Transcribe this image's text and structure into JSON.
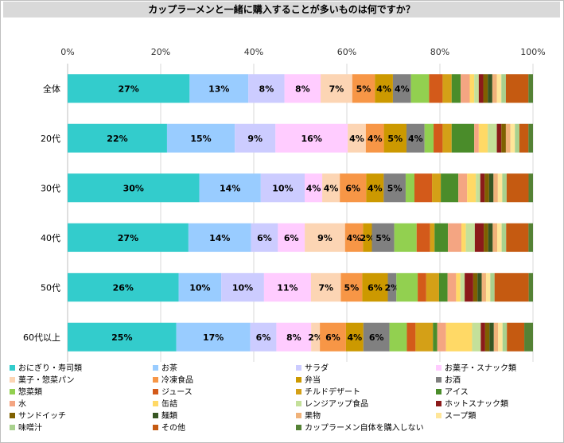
{
  "chart_data": {
    "type": "bar",
    "orientation": "horizontal",
    "stacked": "percent",
    "title": "カップラーメンと一緒に購入することが多いものは何ですか？",
    "categories": [
      "全体",
      "20代",
      "30代",
      "40代",
      "50代",
      "60代以上"
    ],
    "x_ticks": [
      "0%",
      "20%",
      "40%",
      "60%",
      "80%",
      "100%"
    ],
    "xlim": [
      0,
      100
    ],
    "grid": true,
    "legend_position": "bottom",
    "series": [
      {
        "name": "おにぎり・寿司類",
        "color": "#33cccc",
        "values": [
          27,
          22,
          30,
          27,
          26,
          25
        ],
        "labels": [
          "27%",
          "22%",
          "30%",
          "27%",
          "26%",
          "25%"
        ]
      },
      {
        "name": "お茶",
        "color": "#99ccff",
        "values": [
          13,
          15,
          14,
          14,
          10,
          17
        ],
        "labels": [
          "13%",
          "15%",
          "14%",
          "14%",
          "10%",
          "17%"
        ]
      },
      {
        "name": "サラダ",
        "color": "#ccccff",
        "values": [
          8,
          9,
          10,
          6,
          10,
          6
        ],
        "labels": [
          "8%",
          "9%",
          "10%",
          "6%",
          "10%",
          "6%"
        ]
      },
      {
        "name": "お菓子・スナック類",
        "color": "#ffccff",
        "values": [
          8,
          16,
          4,
          6,
          11,
          8
        ],
        "labels": [
          "8%",
          "16%",
          "4%",
          "6%",
          "11%",
          "8%"
        ]
      },
      {
        "name": "菓子・惣菜パン",
        "color": "#fcd5b4",
        "values": [
          7,
          4,
          4,
          9,
          7,
          2
        ],
        "labels": [
          "7%",
          "4%",
          "4%",
          "9%",
          "7%",
          "2%"
        ]
      },
      {
        "name": "冷凍食品",
        "color": "#f79646",
        "values": [
          5,
          4,
          6,
          4,
          5,
          6
        ],
        "labels": [
          "5%",
          "4%",
          "6%",
          "4%",
          "5%",
          "6%"
        ]
      },
      {
        "name": "弁当",
        "color": "#cc9900",
        "values": [
          4,
          5,
          4,
          2,
          6,
          4
        ],
        "labels": [
          "4%",
          "5%",
          "4%",
          "2%",
          "6%",
          "4%"
        ]
      },
      {
        "name": "お酒",
        "color": "#808080",
        "values": [
          4,
          4,
          5,
          5,
          2,
          6
        ],
        "labels": [
          "4%",
          "4%",
          "5%",
          "5%",
          "2%",
          "6%"
        ]
      },
      {
        "name": "惣菜類",
        "color": "#92d050",
        "values": [
          4,
          2,
          2,
          5,
          5,
          4
        ]
      },
      {
        "name": "ジュース",
        "color": "#d35a1a",
        "values": [
          3,
          2,
          4,
          3,
          2,
          2
        ]
      },
      {
        "name": "チルドデザート",
        "color": "#d4a017",
        "values": [
          2,
          2,
          2,
          1,
          3,
          4
        ]
      },
      {
        "name": "アイス",
        "color": "#4a8c2a",
        "values": [
          2,
          5,
          4,
          3,
          2,
          1
        ]
      },
      {
        "name": "水",
        "color": "#f4a582",
        "values": [
          2,
          1,
          2,
          3,
          2,
          2
        ]
      },
      {
        "name": "缶詰",
        "color": "#ffd966",
        "values": [
          1,
          2,
          2,
          1,
          1,
          6
        ]
      },
      {
        "name": "レンジアップ食品",
        "color": "#c4e09a",
        "values": [
          1,
          2,
          1,
          2,
          1,
          2
        ]
      },
      {
        "name": "ホットスナック類",
        "color": "#8b1a1a",
        "values": [
          1,
          1,
          1,
          2,
          2,
          1
        ]
      },
      {
        "name": "サンドイッチ",
        "color": "#7f6000",
        "values": [
          1,
          1,
          1,
          1,
          1,
          1
        ]
      },
      {
        "name": "麺類",
        "color": "#375623",
        "values": [
          1,
          0,
          1,
          1,
          1,
          1
        ]
      },
      {
        "name": "果物",
        "color": "#f0b27a",
        "values": [
          1,
          1,
          1,
          1,
          1,
          1
        ]
      },
      {
        "name": "スープ類",
        "color": "#ffe699",
        "values": [
          1,
          1,
          1,
          1,
          1,
          1
        ]
      },
      {
        "name": "味噌汁",
        "color": "#a9d18e",
        "values": [
          1,
          1,
          1,
          1,
          1,
          1
        ]
      },
      {
        "name": "その他",
        "color": "#c55a11",
        "values": [
          5,
          2,
          5,
          5,
          8,
          4
        ]
      },
      {
        "name": "カップラーメン自体を購入しない",
        "color": "#548235",
        "values": [
          1,
          1,
          1,
          1,
          1,
          2
        ]
      }
    ]
  }
}
